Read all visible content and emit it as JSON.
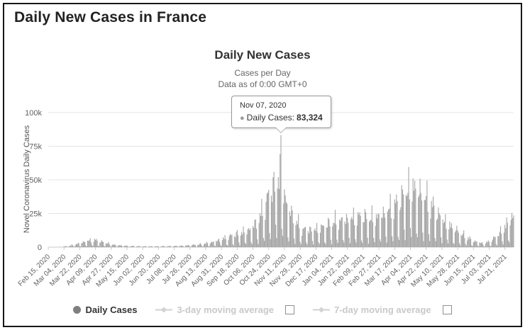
{
  "page": {
    "title": "Daily New Cases in France"
  },
  "chart_data": {
    "type": "bar",
    "title": "Daily New Cases",
    "subtitle_line1": "Cases per Day",
    "subtitle_line2": "Data as of 0:00 GMT+0",
    "ylabel": "Novel Coronavirus Daily Cases",
    "ylim": [
      0,
      100000
    ],
    "yticks": [
      {
        "label": "0",
        "value": 0
      },
      {
        "label": "25k",
        "value": 25000
      },
      {
        "label": "50k",
        "value": 50000
      },
      {
        "label": "75k",
        "value": 75000
      },
      {
        "label": "100k",
        "value": 100000
      }
    ],
    "x_start": "2020-02-15",
    "x_end": "2021-07-31",
    "x_tick_interval_days": 18,
    "x_tick_labels": [
      "Feb 15, 2020",
      "Mar 04, 2020",
      "Mar 22, 2020",
      "Apr 09, 2020",
      "Apr 27, 2020",
      "May 15, 2020",
      "Jun 02, 2020",
      "Jun 20, 2020",
      "Jul 08, 2020",
      "Jul 26, 2020",
      "Aug 13, 2020",
      "Aug 31, 2020",
      "Sep 18, 2020",
      "Oct 06, 2020",
      "Oct 24, 2020",
      "Nov 11, 2020",
      "Nov 29, 2020",
      "Dec 17, 2020",
      "Jan 04, 2021",
      "Jan 22, 2021",
      "Feb 09, 2021",
      "Feb 27, 2021",
      "Mar 17, 2021",
      "Apr 04, 2021",
      "Apr 22, 2021",
      "May 10, 2021",
      "May 28, 2021",
      "Jun 15, 2021",
      "Jul 03, 2021",
      "Jul 21, 2021"
    ],
    "bar_color": "#a4a4a4",
    "grid_color": "#e4e4e4",
    "axis_line_color": "#cccccc",
    "highlight": {
      "date": "2020-11-07",
      "value": 83324
    },
    "envelope_keypoints": [
      [
        "2020-02-15",
        20
      ],
      [
        "2020-03-01",
        200
      ],
      [
        "2020-03-10",
        800
      ],
      [
        "2020-03-20",
        2300
      ],
      [
        "2020-03-31",
        4200
      ],
      [
        "2020-04-08",
        4600
      ],
      [
        "2020-04-18",
        3200
      ],
      [
        "2020-05-01",
        1500
      ],
      [
        "2020-05-15",
        800
      ],
      [
        "2020-06-01",
        550
      ],
      [
        "2020-06-20",
        550
      ],
      [
        "2020-07-06",
        700
      ],
      [
        "2020-07-20",
        1000
      ],
      [
        "2020-08-05",
        1700
      ],
      [
        "2020-08-20",
        3200
      ],
      [
        "2020-09-05",
        6000
      ],
      [
        "2020-09-20",
        9000
      ],
      [
        "2020-10-03",
        12000
      ],
      [
        "2020-10-12",
        17000
      ],
      [
        "2020-10-20",
        27000
      ],
      [
        "2020-10-27",
        38000
      ],
      [
        "2020-11-03",
        44000
      ],
      [
        "2020-11-07",
        47000
      ],
      [
        "2020-11-12",
        31000
      ],
      [
        "2020-11-20",
        20000
      ],
      [
        "2020-12-01",
        11500
      ],
      [
        "2020-12-20",
        12000
      ],
      [
        "2021-01-05",
        16000
      ],
      [
        "2021-01-20",
        18500
      ],
      [
        "2021-02-05",
        19500
      ],
      [
        "2021-02-20",
        19000
      ],
      [
        "2021-03-05",
        22000
      ],
      [
        "2021-03-20",
        28000
      ],
      [
        "2021-03-31",
        38000
      ],
      [
        "2021-04-08",
        40000
      ],
      [
        "2021-04-20",
        32000
      ],
      [
        "2021-05-01",
        25000
      ],
      [
        "2021-05-15",
        16000
      ],
      [
        "2021-06-01",
        8500
      ],
      [
        "2021-06-15",
        4200
      ],
      [
        "2021-06-27",
        2300
      ],
      [
        "2021-07-06",
        4500
      ],
      [
        "2021-07-15",
        9000
      ],
      [
        "2021-07-24",
        16000
      ],
      [
        "2021-07-31",
        21000
      ]
    ],
    "weekly_pattern": [
      0.32,
      0.17,
      0.95,
      1.12,
      1.22,
      1.38,
      1.05
    ]
  },
  "tooltip": {
    "date": "Nov 07, 2020",
    "series_label": "Daily Cases:",
    "value": "83,324",
    "marker_color": "#9a9a9a"
  },
  "legend": {
    "daily_cases": "Daily Cases",
    "avg3": "3-day moving average",
    "avg7": "7-day moving average",
    "daily_marker_color": "#7f7f7f",
    "avg_marker_color": "#d2d2d2"
  },
  "icons": {
    "daily_cases_bullet": "●"
  }
}
